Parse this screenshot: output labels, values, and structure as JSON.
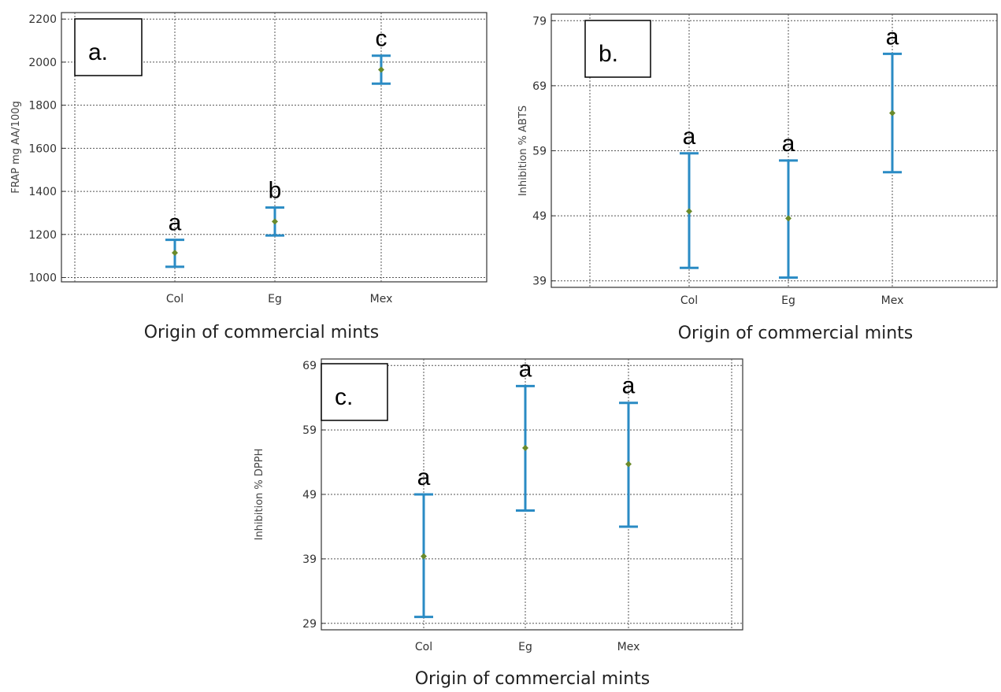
{
  "colors": {
    "error_bar": "#2a8bc4",
    "mean_point": "#6a8a2a",
    "grid": "#555555",
    "frame": "#333333"
  },
  "chart_data": [
    {
      "type": "error_bar",
      "panel_label": "a.",
      "xlabel": "Origin of commercial mints",
      "ylabel": "FRAP mg AA/100g",
      "categories": [
        "Col",
        "Eg",
        "Mex"
      ],
      "ylim": [
        980,
        2230
      ],
      "yticks": [
        1000,
        1200,
        1400,
        1600,
        1800,
        2000,
        2200
      ],
      "grid": true,
      "series": [
        {
          "mean": [
            1115,
            1260,
            1965
          ],
          "lower": [
            1050,
            1195,
            1900
          ],
          "upper": [
            1175,
            1325,
            2030
          ],
          "letters": [
            "a",
            "b",
            "c"
          ]
        }
      ]
    },
    {
      "type": "error_bar",
      "panel_label": "b.",
      "xlabel": "Origin of commercial mints",
      "ylabel": "Inhibition % ABTS",
      "categories": [
        "Col",
        "Eg",
        "Mex"
      ],
      "ylim": [
        38,
        80
      ],
      "yticks": [
        39,
        49,
        59,
        69,
        79
      ],
      "grid": true,
      "series": [
        {
          "mean": [
            49.7,
            48.6,
            64.8
          ],
          "lower": [
            41.0,
            39.5,
            55.7
          ],
          "upper": [
            58.6,
            57.5,
            73.9
          ],
          "letters": [
            "a",
            "a",
            "a"
          ]
        }
      ]
    },
    {
      "type": "error_bar",
      "panel_label": "c.",
      "xlabel": "Origin of commercial mints",
      "ylabel": "Inhibition % DPPH",
      "categories": [
        "Col",
        "Eg",
        "Mex"
      ],
      "ylim": [
        28,
        70
      ],
      "yticks": [
        29,
        39,
        49,
        59,
        69
      ],
      "grid": true,
      "series": [
        {
          "mean": [
            39.4,
            56.2,
            53.7
          ],
          "lower": [
            30.0,
            46.5,
            44.0
          ],
          "upper": [
            49.0,
            65.8,
            63.2
          ],
          "letters": [
            "a",
            "a",
            "a"
          ]
        }
      ]
    }
  ]
}
